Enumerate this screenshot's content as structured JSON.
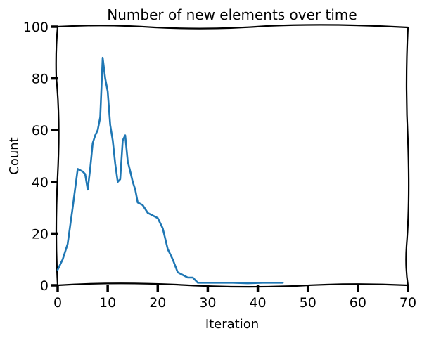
{
  "chart_data": {
    "type": "line",
    "title": "Number of new elements over time",
    "xlabel": "Iteration",
    "ylabel": "Count",
    "xlim": [
      0,
      70
    ],
    "ylim": [
      0,
      100
    ],
    "xticks": [
      0,
      10,
      20,
      30,
      40,
      50,
      60,
      70
    ],
    "yticks": [
      0,
      20,
      40,
      60,
      80,
      100
    ],
    "grid": false,
    "line_color": "#1f77b4",
    "series": [
      {
        "x": [
          0,
          1,
          2,
          3,
          4,
          5,
          5.5,
          6,
          6.5,
          7,
          7.5,
          8,
          8.5,
          9,
          9.5,
          10,
          10.5,
          11,
          11.5,
          12,
          12.5,
          13,
          13.5,
          14,
          14.5,
          15,
          15.5,
          16,
          17,
          18,
          19,
          20,
          21,
          22,
          23,
          24,
          25,
          26,
          27,
          28,
          29,
          30,
          32,
          35,
          38,
          41,
          44,
          45
        ],
        "y": [
          6,
          10,
          16,
          30,
          45,
          44,
          43,
          37,
          45,
          55,
          58,
          60,
          65,
          88,
          80,
          75,
          62,
          56,
          47,
          40,
          41,
          56,
          58,
          48,
          44,
          40,
          37,
          32,
          31,
          28,
          27,
          26,
          22,
          14,
          10,
          5,
          4,
          3,
          3,
          1,
          1,
          1,
          1,
          1,
          0.8,
          1,
          1,
          1
        ]
      }
    ]
  }
}
